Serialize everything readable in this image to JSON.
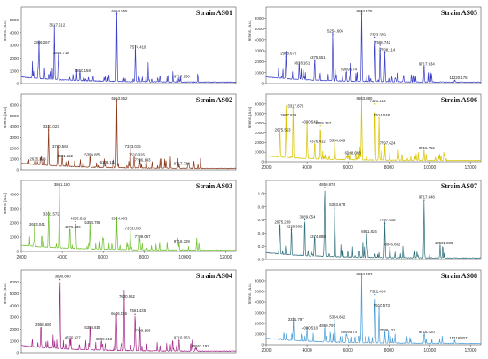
{
  "chart_data": [
    {
      "type": "line",
      "title": "Strain AS01",
      "ylabel": "Intens. [a.u.]",
      "xlim": [
        2000,
        12500
      ],
      "ylim": [
        0,
        6000
      ],
      "yticks": [
        "5000",
        "4000",
        "3000",
        "2000",
        "1000",
        "0"
      ],
      "xticks": [],
      "color": "#3b3fc8",
      "peaks": [
        {
          "label": "2866.267",
          "x": 2866,
          "y": 3000
        },
        {
          "label": "3617.512",
          "x": 3618,
          "y": 4350
        },
        {
          "label": "3814.719",
          "x": 3815,
          "y": 2150
        },
        {
          "label": "4860.168",
          "x": 4860,
          "y": 780
        },
        {
          "label": "6664.555",
          "x": 6665,
          "y": 5500
        },
        {
          "label": "7574.419",
          "x": 7574,
          "y": 2600
        },
        {
          "label": "9717.930",
          "x": 9718,
          "y": 300
        }
      ]
    },
    {
      "type": "line",
      "title": "Strain AS05",
      "ylabel": "Intens. [a.u.]",
      "xlim": [
        2000,
        12500
      ],
      "ylim": [
        0,
        7000
      ],
      "yticks": [
        "6000",
        "5000",
        "4000",
        "3000",
        "2000",
        "1000",
        "0"
      ],
      "xticks": [],
      "color": "#3b3fc8",
      "peaks": [
        {
          "label": "2968.670",
          "x": 2968,
          "y": 2500
        },
        {
          "label": "3618.161",
          "x": 3618,
          "y": 1600
        },
        {
          "label": "4375.651",
          "x": 4376,
          "y": 2100
        },
        {
          "label": "5254.606",
          "x": 5254,
          "y": 4500
        },
        {
          "label": "5909.574",
          "x": 5910,
          "y": 1000
        },
        {
          "label": "6664.475",
          "x": 6664,
          "y": 6400
        },
        {
          "label": "7323.379",
          "x": 7323,
          "y": 4200
        },
        {
          "label": "7560.742",
          "x": 7560,
          "y": 3500
        },
        {
          "label": "7798.114",
          "x": 7798,
          "y": 2800
        },
        {
          "label": "9717.934",
          "x": 9718,
          "y": 1500
        },
        {
          "label": "11220.175",
          "x": 11220,
          "y": 250
        }
      ]
    },
    {
      "type": "line",
      "title": "Strain AS02",
      "ylabel": "Intens. [a.u.]",
      "xlim": [
        2000,
        12500
      ],
      "ylim": [
        0,
        7000
      ],
      "yticks": [
        "6000",
        "5000",
        "4000",
        "3000",
        "2000",
        "1000",
        "0"
      ],
      "xticks": [],
      "color": "#8b3a1e",
      "peaks": [
        {
          "label": "2675.328",
          "x": 2675,
          "y": 700
        },
        {
          "label": "3331.023",
          "x": 3331,
          "y": 3700
        },
        {
          "label": "3780.563",
          "x": 3781,
          "y": 1900
        },
        {
          "label": "4001.622",
          "x": 4002,
          "y": 1000
        },
        {
          "label": "5354.855",
          "x": 5355,
          "y": 1100
        },
        {
          "label": "6108.111",
          "x": 6108,
          "y": 400
        },
        {
          "label": "6663.862",
          "x": 6664,
          "y": 6400
        },
        {
          "label": "7323.035",
          "x": 7323,
          "y": 1900
        },
        {
          "label": "7510.326",
          "x": 7510,
          "y": 1100
        },
        {
          "label": "7796.143",
          "x": 7796,
          "y": 600
        },
        {
          "label": "9717.734",
          "x": 9718,
          "y": 300
        }
      ]
    },
    {
      "type": "line",
      "title": "Strain AS06",
      "ylabel": "Intens. [a.u.]",
      "xlim": [
        2000,
        12500
      ],
      "ylim": [
        0,
        7000
      ],
      "yticks": [
        "6000",
        "5000",
        "4000",
        "3000",
        "2000",
        "1000",
        "0"
      ],
      "xticks": [
        "2000",
        "4000",
        "6000",
        "8000",
        "10000",
        "12000"
      ],
      "color": "#d9c400",
      "peaks": [
        {
          "label": "2675.563",
          "x": 2676,
          "y": 3000
        },
        {
          "label": "2967.539",
          "x": 2968,
          "y": 4500
        },
        {
          "label": "3317.879",
          "x": 3318,
          "y": 5500
        },
        {
          "label": "4000.549",
          "x": 4001,
          "y": 3800
        },
        {
          "label": "4376.412",
          "x": 4376,
          "y": 1800
        },
        {
          "label": "4655.247",
          "x": 4655,
          "y": 3700
        },
        {
          "label": "5354.849",
          "x": 5355,
          "y": 1900
        },
        {
          "label": "6108.068",
          "x": 6108,
          "y": 600
        },
        {
          "label": "6663.380",
          "x": 6663,
          "y": 6700
        },
        {
          "label": "7321.133",
          "x": 7321,
          "y": 6000
        },
        {
          "label": "7514.048",
          "x": 7514,
          "y": 4500
        },
        {
          "label": "7797.624",
          "x": 7798,
          "y": 1600
        },
        {
          "label": "9716.752",
          "x": 9717,
          "y": 1100
        }
      ]
    },
    {
      "type": "line",
      "title": "Strain AS03",
      "ylabel": "Intens. [a.u.]",
      "xlim": [
        2000,
        12500
      ],
      "ylim": [
        0,
        5000
      ],
      "yticks": [
        "4000",
        "3000",
        "2000",
        "1000",
        "0"
      ],
      "xticks": [
        "2000",
        "4000",
        "6000",
        "8000",
        "10000",
        "12000"
      ],
      "color": "#6cc02b",
      "peaks": [
        {
          "label": "2653.041",
          "x": 2653,
          "y": 1700
        },
        {
          "label": "3331.572",
          "x": 3332,
          "y": 2400
        },
        {
          "label": "3861.180",
          "x": 3861,
          "y": 4600
        },
        {
          "label": "4376.439",
          "x": 4376,
          "y": 1500
        },
        {
          "label": "4655.522",
          "x": 4656,
          "y": 2100
        },
        {
          "label": "5354.756",
          "x": 5355,
          "y": 1800
        },
        {
          "label": "6664.903",
          "x": 6665,
          "y": 2100
        },
        {
          "label": "7323.038",
          "x": 7323,
          "y": 1400
        },
        {
          "label": "7799.067",
          "x": 7799,
          "y": 800
        },
        {
          "label": "9716.329",
          "x": 9716,
          "y": 500
        }
      ]
    },
    {
      "type": "line",
      "title": "Strain AS07",
      "ylabel": "",
      "xlim": [
        2000,
        12500
      ],
      "ylim": [
        0,
        1.2
      ],
      "yticks": [
        "1.0",
        "0.8",
        "0.6",
        "0.4",
        "0.2",
        "0.0"
      ],
      "xticks": [],
      "color": "#2f6e7a",
      "peaks": [
        {
          "label": "2675.289",
          "x": 2675,
          "y": 0.52
        },
        {
          "label": "3239.309",
          "x": 3239,
          "y": 0.45
        },
        {
          "label": "3889.054",
          "x": 3889,
          "y": 0.6
        },
        {
          "label": "4374.888",
          "x": 4375,
          "y": 0.3
        },
        {
          "label": "4859.976",
          "x": 4860,
          "y": 1.1
        },
        {
          "label": "5353.678",
          "x": 5354,
          "y": 0.78
        },
        {
          "label": "6911.826",
          "x": 6912,
          "y": 0.38
        },
        {
          "label": "7797.518",
          "x": 7797,
          "y": 0.55
        },
        {
          "label": "8046.832",
          "x": 8047,
          "y": 0.18
        },
        {
          "label": "9717.848",
          "x": 9718,
          "y": 0.9
        },
        {
          "label": "10501.830",
          "x": 10502,
          "y": 0.2
        }
      ]
    },
    {
      "type": "line",
      "title": "Strain AS04",
      "ylabel": "Intens. [a.u.]",
      "xlim": [
        2000,
        12500
      ],
      "ylim": [
        0,
        7000
      ],
      "yticks": [
        "6000",
        "5000",
        "4000",
        "3000",
        "2000",
        "1000",
        "0"
      ],
      "xticks": [],
      "color": "#a52a8a",
      "peaks": [
        {
          "label": "2958.680",
          "x": 2959,
          "y": 2100
        },
        {
          "label": "3890.840",
          "x": 3891,
          "y": 6200
        },
        {
          "label": "4376.327",
          "x": 4376,
          "y": 1000
        },
        {
          "label": "5354.610",
          "x": 5355,
          "y": 1900
        },
        {
          "label": "5909.913",
          "x": 5910,
          "y": 900
        },
        {
          "label": "6646.536",
          "x": 6647,
          "y": 3100
        },
        {
          "label": "7030.962",
          "x": 7031,
          "y": 4500
        },
        {
          "label": "7561.435",
          "x": 7561,
          "y": 3300
        },
        {
          "label": "7798.168",
          "x": 7798,
          "y": 1600
        },
        {
          "label": "9716.953",
          "x": 9717,
          "y": 1000
        },
        {
          "label": "10562.193",
          "x": 10562,
          "y": 300
        }
      ]
    },
    {
      "type": "line",
      "title": "Strain AS08",
      "ylabel": "Intens. [a.u.]",
      "xlim": [
        2000,
        12500
      ],
      "ylim": [
        0,
        7000
      ],
      "yticks": [
        "6000",
        "5000",
        "4000",
        "3000",
        "2000",
        "1000",
        "0"
      ],
      "xticks": [
        "2000",
        "4000",
        "6000",
        "8000",
        "10000",
        "12000"
      ],
      "color": "#4a9ed8",
      "peaks": [
        {
          "label": "3331.797",
          "x": 3332,
          "y": 2100
        },
        {
          "label": "4000.510",
          "x": 4001,
          "y": 1300
        },
        {
          "label": "4860.797",
          "x": 4861,
          "y": 1500
        },
        {
          "label": "5354.842",
          "x": 5355,
          "y": 2300
        },
        {
          "label": "5909.574",
          "x": 5910,
          "y": 900
        },
        {
          "label": "6664.483",
          "x": 6664,
          "y": 6500
        },
        {
          "label": "7322.424",
          "x": 7322,
          "y": 4700
        },
        {
          "label": "7510.573",
          "x": 7511,
          "y": 3400
        },
        {
          "label": "7798.121",
          "x": 7798,
          "y": 1100
        },
        {
          "label": "9718.220",
          "x": 9718,
          "y": 900
        },
        {
          "label": "11218.807",
          "x": 11219,
          "y": 350
        }
      ]
    }
  ]
}
